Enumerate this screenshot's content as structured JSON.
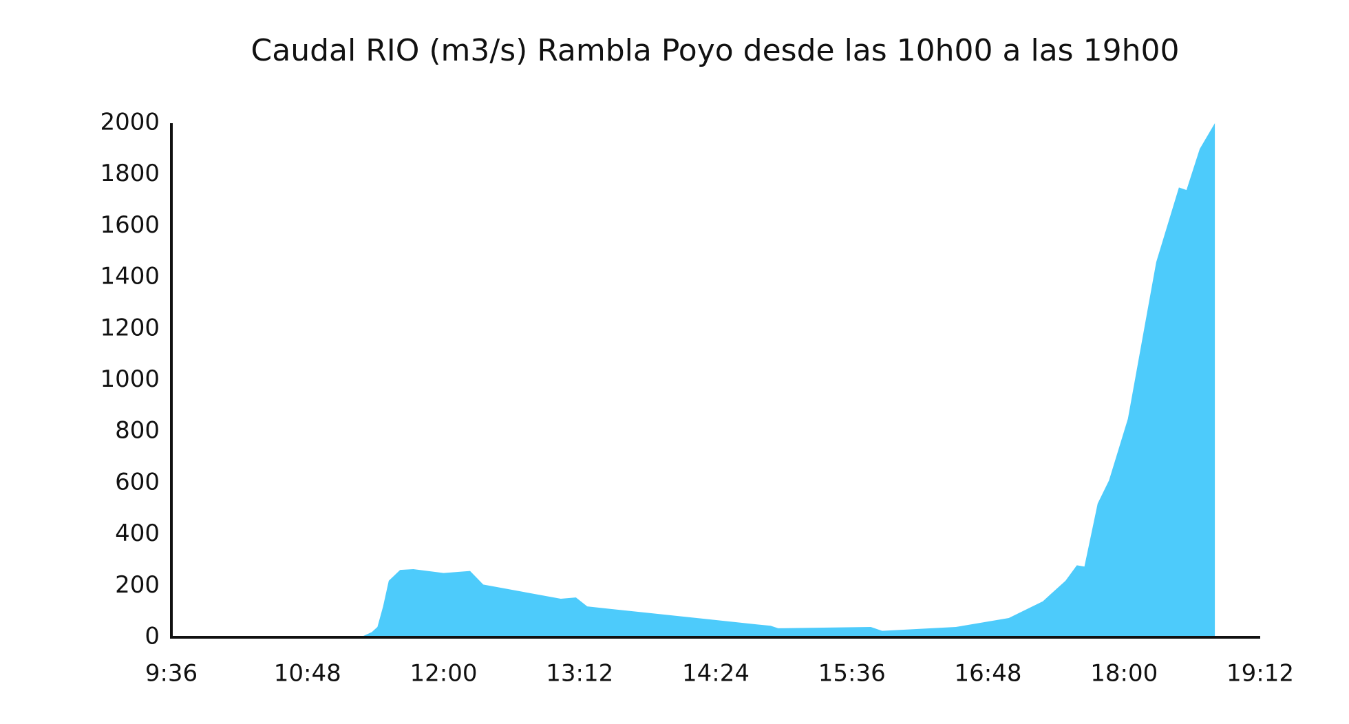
{
  "chart_data": {
    "type": "area",
    "title": "Caudal RIO (m3/s) Rambla Poyo desde las 10h00 a las 19h00",
    "color": "#4dcbfb",
    "x": [
      "9:36",
      "11:16",
      "11:22",
      "11:25",
      "11:28",
      "11:31",
      "11:37",
      "11:44",
      "12:00",
      "12:14",
      "12:21",
      "13:02",
      "13:10",
      "13:16",
      "14:46",
      "14:53",
      "14:57",
      "15:46",
      "15:52",
      "16:31",
      "16:59",
      "17:17",
      "17:29",
      "17:35",
      "17:39",
      "17:46",
      "17:52",
      "18:02",
      "18:17",
      "18:29",
      "18:33",
      "18:40",
      "18:48"
    ],
    "values": [
      0,
      0,
      20,
      40,
      120,
      220,
      262,
      265,
      250,
      258,
      205,
      150,
      155,
      120,
      50,
      45,
      35,
      40,
      25,
      40,
      75,
      140,
      220,
      280,
      275,
      520,
      610,
      850,
      1460,
      1750,
      1740,
      1900,
      2000
    ],
    "xlim": [
      "9:36",
      "19:12"
    ],
    "xticks": [
      "9:36",
      "10:48",
      "12:00",
      "13:12",
      "14:24",
      "15:36",
      "16:48",
      "18:00",
      "19:12"
    ],
    "ylim": [
      0,
      2000
    ],
    "yticks": [
      0,
      200,
      400,
      600,
      800,
      1000,
      1200,
      1400,
      1600,
      1800,
      2000
    ],
    "grid": false
  }
}
